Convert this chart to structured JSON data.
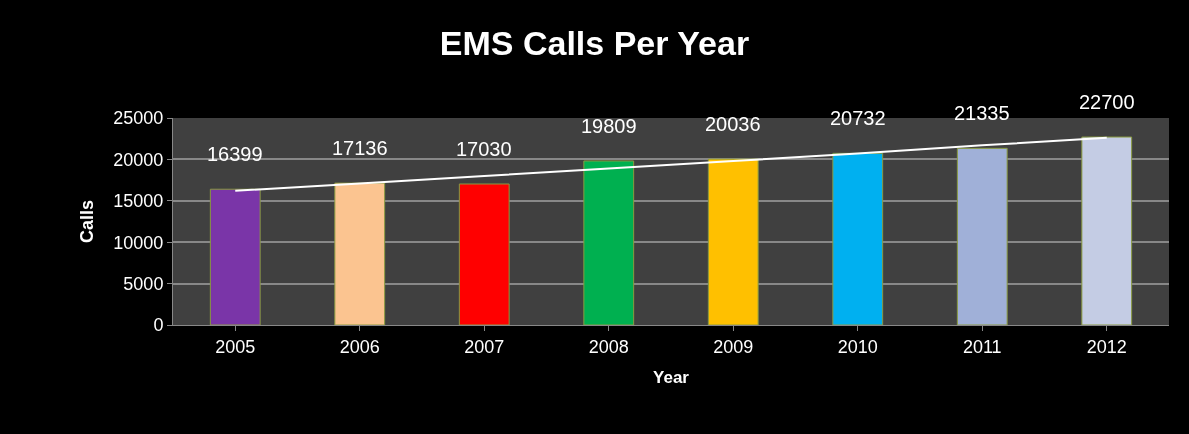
{
  "chart_data": {
    "type": "bar",
    "title": "EMS Calls Per Year",
    "xlabel": "Year",
    "ylabel": "Calls",
    "categories": [
      "2005",
      "2006",
      "2007",
      "2008",
      "2009",
      "2010",
      "2011",
      "2012"
    ],
    "series": [
      {
        "values": [
          16399,
          17136,
          17030,
          19809,
          20036,
          20732,
          21335,
          22700
        ],
        "colors": [
          "#7a35a8",
          "#fbc490",
          "#ff0000",
          "#00b050",
          "#ffc000",
          "#00b0f0",
          "#a0b0d8",
          "#c4cce4"
        ],
        "value_labels": [
          "16399",
          "17136",
          "17030",
          "19809",
          "20036",
          "20732",
          "21335",
          "22700"
        ]
      },
      {
        "type": "line",
        "color": "#ffffff",
        "values": [
          16200,
          17100,
          18000,
          18900,
          19800,
          20700,
          21700,
          22600
        ]
      }
    ],
    "ylim": [
      0,
      25000
    ],
    "yticks": [
      0,
      5000,
      10000,
      15000,
      20000,
      25000
    ],
    "grid": "y",
    "legend": false
  }
}
